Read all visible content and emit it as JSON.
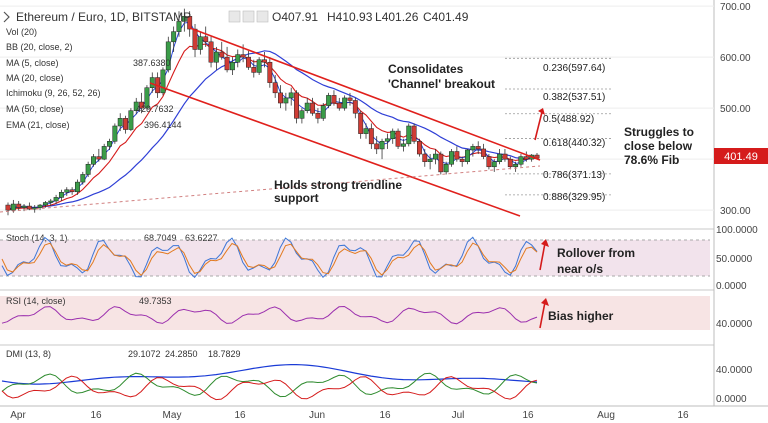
{
  "chart_data": {
    "type": "candlestick",
    "title": "Ethereum / Euro, 1D, BITSTAMP",
    "ohlc_header": [
      {
        "key": "O",
        "value": "407.91"
      },
      {
        "key": "H",
        "value": "410.93"
      },
      {
        "key": "L",
        "value": "401.26"
      },
      {
        "key": "C",
        "value": "401.49"
      }
    ],
    "last_price": "401.49",
    "y_ticks": [
      "700.00",
      "600.00",
      "500.00",
      "400.00",
      "300.00"
    ],
    "ylim": [
      265,
      712
    ],
    "x_ticks": [
      "Apr",
      "16",
      "May",
      "16",
      "Jun",
      "16",
      "Jul",
      "16",
      "Aug",
      "16"
    ],
    "fib_levels": [
      {
        "label": "0.236(597.64)",
        "value": 597.64
      },
      {
        "label": "0.382(537.51)",
        "value": 537.51
      },
      {
        "label": "0.5(488.92)",
        "value": 488.92
      },
      {
        "label": "0.618(440.32)",
        "value": 440.32
      },
      {
        "label": "0.786(371.13)",
        "value": 371.13
      },
      {
        "label": "0.886(329.95)",
        "value": 329.95
      }
    ],
    "legend": [
      {
        "text": "Vol (20)",
        "value": ""
      },
      {
        "text": "BB (20, close, 2)",
        "value": ""
      },
      {
        "text": "MA (5, close)",
        "value": "387.6380"
      },
      {
        "text": "MA (20, close)",
        "value": ""
      },
      {
        "text": "Ichimoku (9, 26, 52, 26)",
        "value": ""
      },
      {
        "text": "MA (50, close)",
        "value": "429.7632"
      },
      {
        "text": "EMA (21, close)",
        "value": "396.4144"
      }
    ],
    "annotations": [
      {
        "id": "channel",
        "lines": [
          "Consolidates",
          "'Channel' breakout"
        ]
      },
      {
        "id": "trendline",
        "lines": [
          "Holds strong trendline",
          "support"
        ]
      },
      {
        "id": "fib",
        "lines": [
          "Struggles to",
          "close below",
          "78.6% Fib"
        ]
      },
      {
        "id": "stoch",
        "lines": [
          "Rollover from",
          "near o/s"
        ]
      },
      {
        "id": "rsi",
        "lines": [
          "Bias higher"
        ]
      }
    ],
    "candles": [
      [
        310,
        315,
        290,
        300
      ],
      [
        300,
        320,
        295,
        312
      ],
      [
        312,
        318,
        300,
        305
      ],
      [
        305,
        312,
        298,
        308
      ],
      [
        308,
        315,
        300,
        302
      ],
      [
        302,
        310,
        295,
        305
      ],
      [
        305,
        312,
        300,
        310
      ],
      [
        310,
        318,
        305,
        315
      ],
      [
        315,
        322,
        308,
        318
      ],
      [
        318,
        330,
        312,
        325
      ],
      [
        325,
        340,
        318,
        335
      ],
      [
        335,
        345,
        328,
        340
      ],
      [
        340,
        345,
        330,
        336
      ],
      [
        336,
        360,
        330,
        355
      ],
      [
        355,
        375,
        350,
        370
      ],
      [
        370,
        395,
        365,
        390
      ],
      [
        390,
        410,
        385,
        405
      ],
      [
        405,
        420,
        395,
        400
      ],
      [
        400,
        430,
        398,
        425
      ],
      [
        425,
        440,
        418,
        435
      ],
      [
        435,
        470,
        430,
        465
      ],
      [
        465,
        490,
        455,
        480
      ],
      [
        480,
        485,
        450,
        458
      ],
      [
        458,
        500,
        455,
        495
      ],
      [
        495,
        520,
        488,
        512
      ],
      [
        512,
        530,
        490,
        500
      ],
      [
        500,
        545,
        495,
        540
      ],
      [
        540,
        570,
        530,
        560
      ],
      [
        560,
        570,
        520,
        530
      ],
      [
        530,
        580,
        525,
        575
      ],
      [
        575,
        640,
        570,
        630
      ],
      [
        630,
        660,
        610,
        650
      ],
      [
        650,
        690,
        640,
        670
      ],
      [
        670,
        695,
        650,
        680
      ],
      [
        680,
        690,
        640,
        655
      ],
      [
        655,
        665,
        600,
        615
      ],
      [
        615,
        650,
        605,
        640
      ],
      [
        640,
        660,
        620,
        630
      ],
      [
        630,
        640,
        580,
        590
      ],
      [
        590,
        620,
        575,
        610
      ],
      [
        610,
        630,
        595,
        600
      ],
      [
        600,
        620,
        570,
        575
      ],
      [
        575,
        600,
        565,
        590
      ],
      [
        590,
        615,
        580,
        605
      ],
      [
        605,
        625,
        590,
        600
      ],
      [
        600,
        612,
        575,
        580
      ],
      [
        580,
        595,
        560,
        570
      ],
      [
        570,
        600,
        565,
        595
      ],
      [
        595,
        610,
        580,
        590
      ],
      [
        590,
        600,
        540,
        550
      ],
      [
        550,
        565,
        520,
        530
      ],
      [
        530,
        545,
        500,
        510
      ],
      [
        510,
        530,
        495,
        520
      ],
      [
        520,
        540,
        505,
        530
      ],
      [
        530,
        535,
        470,
        480
      ],
      [
        480,
        500,
        470,
        495
      ],
      [
        495,
        520,
        490,
        510
      ],
      [
        510,
        520,
        485,
        490
      ],
      [
        490,
        500,
        470,
        480
      ],
      [
        480,
        510,
        475,
        505
      ],
      [
        505,
        530,
        500,
        525
      ],
      [
        525,
        535,
        505,
        510
      ],
      [
        510,
        520,
        495,
        500
      ],
      [
        500,
        525,
        495,
        520
      ],
      [
        520,
        530,
        505,
        515
      ],
      [
        515,
        520,
        480,
        490
      ],
      [
        490,
        495,
        440,
        450
      ],
      [
        450,
        470,
        440,
        460
      ],
      [
        460,
        470,
        420,
        430
      ],
      [
        430,
        445,
        410,
        420
      ],
      [
        420,
        440,
        400,
        435
      ],
      [
        435,
        450,
        420,
        440
      ],
      [
        440,
        460,
        430,
        455
      ],
      [
        455,
        460,
        420,
        425
      ],
      [
        425,
        440,
        415,
        430
      ],
      [
        430,
        470,
        425,
        465
      ],
      [
        465,
        470,
        430,
        435
      ],
      [
        435,
        440,
        405,
        410
      ],
      [
        410,
        420,
        385,
        395
      ],
      [
        395,
        410,
        380,
        400
      ],
      [
        400,
        420,
        390,
        410
      ],
      [
        410,
        415,
        370,
        375
      ],
      [
        375,
        395,
        370,
        390
      ],
      [
        390,
        420,
        385,
        415
      ],
      [
        415,
        425,
        395,
        400
      ],
      [
        400,
        405,
        385,
        395
      ],
      [
        395,
        420,
        390,
        418
      ],
      [
        418,
        430,
        405,
        425
      ],
      [
        425,
        435,
        410,
        420
      ],
      [
        420,
        430,
        400,
        405
      ],
      [
        405,
        410,
        380,
        385
      ],
      [
        385,
        400,
        375,
        395
      ],
      [
        395,
        420,
        390,
        410
      ],
      [
        410,
        420,
        395,
        400
      ],
      [
        400,
        405,
        380,
        385
      ],
      [
        385,
        395,
        375,
        390
      ],
      [
        390,
        410,
        385,
        405
      ],
      [
        405,
        415,
        395,
        400
      ],
      [
        400,
        410,
        395,
        408
      ],
      [
        408,
        412,
        400,
        402
      ]
    ]
  }
}
